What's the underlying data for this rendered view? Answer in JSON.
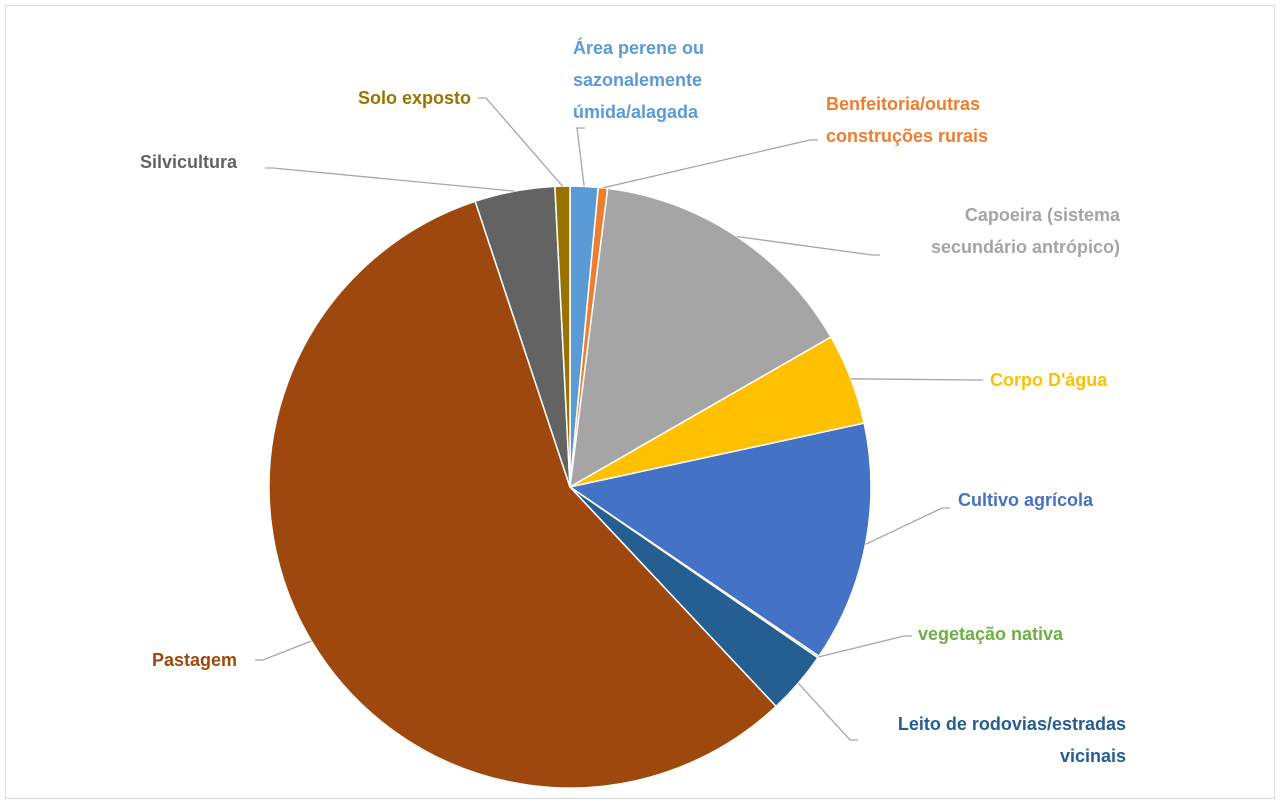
{
  "chart_data": {
    "type": "pie",
    "categories": [
      "Área perene ou sazonalemente úmida/alagada",
      "Benfeitoria/outras construções rurais",
      "Capoeira (sistema secundário antrópico)",
      "Corpo D'água",
      "Cultivo agrícola",
      "vegetação nativa",
      "Leito de rodovias/estradas vicinais",
      "Pastagem",
      "Silvicultura",
      "Solo exposto"
    ],
    "values": [
      1.5,
      0.5,
      14.7,
      4.9,
      12.9,
      0.1,
      3.4,
      56.9,
      4.3,
      0.8
    ],
    "colors": [
      "#5b9bd5",
      "#ed7d31",
      "#a5a5a5",
      "#ffc000",
      "#4472c4",
      "#70ad47",
      "#255e91",
      "#9e480e",
      "#636363",
      "#997300"
    ]
  }
}
